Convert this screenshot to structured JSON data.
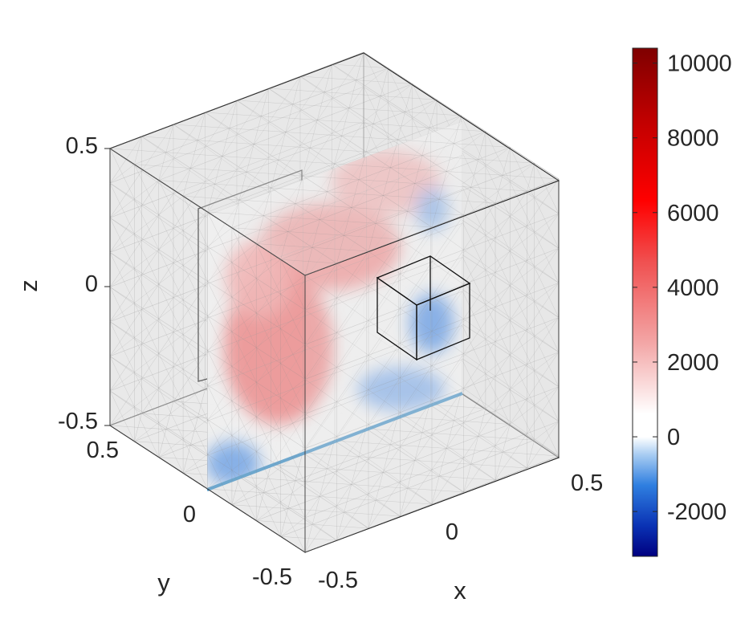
{
  "chart_data": {
    "type": "heatmap",
    "title": "",
    "axes": {
      "x": {
        "label": "x",
        "ticks": [
          "-0.5",
          "0",
          "0.5"
        ],
        "range": [
          -0.5,
          0.5
        ]
      },
      "y": {
        "label": "y",
        "ticks": [
          "-0.5",
          "0",
          "0.5"
        ],
        "range": [
          -0.5,
          0.5
        ]
      },
      "z": {
        "label": "z",
        "ticks": [
          "-0.5",
          "0",
          "0.5"
        ],
        "range": [
          -0.5,
          0.5
        ]
      }
    },
    "slice": {
      "plane": "x = 0",
      "colored": true
    },
    "mesh": {
      "style": "translucent tetrahedral mesh on cube faces"
    },
    "colorbar": {
      "placement": "right",
      "range": [
        -3200,
        10400
      ],
      "ticks": [
        "10000",
        "8000",
        "6000",
        "4000",
        "2000",
        "0",
        "-2000"
      ],
      "tick_values": [
        10000,
        8000,
        6000,
        4000,
        2000,
        0,
        -2000
      ],
      "colormap": "blue-white-red (diverging, centered at 0)"
    },
    "blobs": [
      {
        "sign": "positive",
        "u": 0.28,
        "v": 0.42,
        "ru": 0.2,
        "rv": 0.28,
        "value": 4200
      },
      {
        "sign": "positive",
        "u": 0.48,
        "v": 0.72,
        "ru": 0.26,
        "rv": 0.16,
        "value": 3500
      },
      {
        "sign": "positive",
        "u": 0.7,
        "v": 0.88,
        "ru": 0.2,
        "rv": 0.12,
        "value": 2200
      },
      {
        "sign": "positive",
        "u": 0.2,
        "v": 0.7,
        "ru": 0.12,
        "rv": 0.14,
        "value": 2000
      },
      {
        "sign": "negative",
        "u": 0.88,
        "v": 0.3,
        "ru": 0.08,
        "rv": 0.11,
        "value": -2800
      },
      {
        "sign": "negative",
        "u": 0.88,
        "v": 0.72,
        "ru": 0.06,
        "rv": 0.08,
        "value": -1800
      },
      {
        "sign": "negative",
        "u": 0.76,
        "v": 0.1,
        "ru": 0.16,
        "rv": 0.08,
        "value": -1500
      },
      {
        "sign": "negative",
        "u": 0.1,
        "v": 0.06,
        "ru": 0.1,
        "rv": 0.08,
        "value": -2200
      }
    ],
    "colors": {
      "positive_max": "#7f0000",
      "negative_max": "#000080",
      "zero": "#ffffff",
      "line_accent": "#2e86c1"
    }
  }
}
